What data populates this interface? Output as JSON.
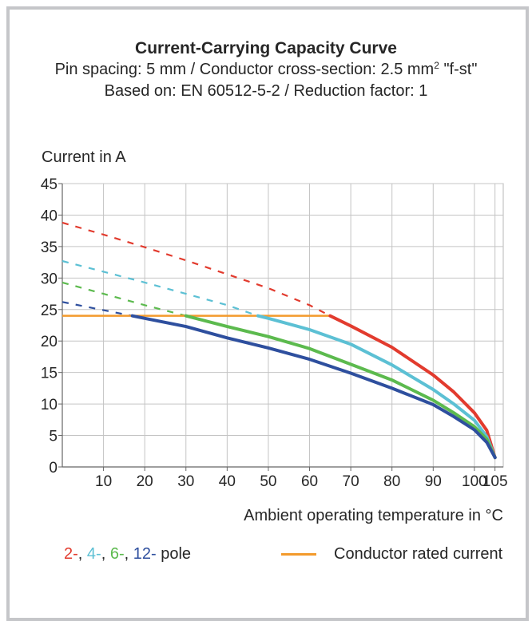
{
  "chart_data": {
    "type": "line",
    "title": "Current-Carrying Capacity Curve",
    "subtitle_line1_pre": "Pin spacing: 5 mm / Conductor cross-section: 2.5 mm",
    "subtitle_line1_sup": "2",
    "subtitle_line1_post": " \"f-st\"",
    "subtitle_line2": "Based on: EN 60512-5-2 / Reduction factor: 1",
    "ylabel": "Current in A",
    "xlabel": "Ambient operating temperature in °C",
    "xlim": [
      0,
      107
    ],
    "ylim": [
      0,
      45
    ],
    "x_ticks": [
      10,
      20,
      30,
      40,
      50,
      60,
      70,
      80,
      90,
      100,
      105
    ],
    "y_ticks": [
      0,
      5,
      10,
      15,
      20,
      25,
      30,
      35,
      40,
      45
    ],
    "grid": true,
    "series": [
      {
        "name": "2-",
        "color": "#e23b2e",
        "dashed": {
          "x": [
            0,
            10,
            20,
            30,
            40,
            50,
            60,
            65
          ],
          "y": [
            38.8,
            36.9,
            34.9,
            32.8,
            30.6,
            28.4,
            25.7,
            24.0
          ]
        },
        "solid": {
          "x": [
            65,
            70,
            80,
            90,
            95,
            100,
            103,
            105
          ],
          "y": [
            24.0,
            22.4,
            19.0,
            14.6,
            11.9,
            8.6,
            5.8,
            1.5
          ]
        }
      },
      {
        "name": "4-",
        "color": "#5cc0d4",
        "dashed": {
          "x": [
            0,
            10,
            20,
            30,
            40,
            47.5
          ],
          "y": [
            32.7,
            31.0,
            29.3,
            27.5,
            25.7,
            24.0
          ]
        },
        "solid": {
          "x": [
            47.5,
            50,
            60,
            70,
            80,
            90,
            95,
            100,
            103,
            105
          ],
          "y": [
            24.0,
            23.6,
            21.8,
            19.5,
            16.2,
            12.3,
            10.0,
            7.4,
            4.8,
            1.5
          ]
        }
      },
      {
        "name": "6-",
        "color": "#5cba4e",
        "dashed": {
          "x": [
            0,
            10,
            20,
            30
          ],
          "y": [
            29.3,
            27.5,
            25.7,
            24.0
          ]
        },
        "solid": {
          "x": [
            30,
            40,
            50,
            60,
            70,
            80,
            90,
            95,
            100,
            103,
            105
          ],
          "y": [
            24.0,
            22.3,
            20.7,
            18.8,
            16.3,
            13.8,
            10.6,
            8.6,
            6.4,
            4.4,
            1.5
          ]
        }
      },
      {
        "name": "12-",
        "color": "#2e4f9e",
        "dashed": {
          "x": [
            0,
            10,
            17
          ],
          "y": [
            26.2,
            24.9,
            24.0
          ]
        },
        "solid": {
          "x": [
            17,
            20,
            30,
            40,
            50,
            60,
            70,
            80,
            90,
            95,
            100,
            103,
            105
          ],
          "y": [
            24.0,
            23.6,
            22.3,
            20.5,
            18.9,
            17.1,
            14.9,
            12.5,
            9.9,
            8.0,
            5.9,
            3.9,
            1.5
          ]
        }
      }
    ],
    "rated_current": {
      "name": "Conductor rated current",
      "value": 24.0,
      "x": [
        0,
        65
      ],
      "color": "#f39a2c"
    },
    "legend": {
      "poles": [
        {
          "text": "2-",
          "color": "#e23b2e"
        },
        {
          "text": ", ",
          "color": "#262626"
        },
        {
          "text": "4-",
          "color": "#5cc0d4"
        },
        {
          "text": ", ",
          "color": "#262626"
        },
        {
          "text": "6-",
          "color": "#5cba4e"
        },
        {
          "text": ", ",
          "color": "#262626"
        },
        {
          "text": "12-",
          "color": "#2e4f9e"
        },
        {
          "text": " pole",
          "color": "#262626"
        }
      ],
      "rated_label": "Conductor rated current",
      "placement": "bottom"
    }
  }
}
